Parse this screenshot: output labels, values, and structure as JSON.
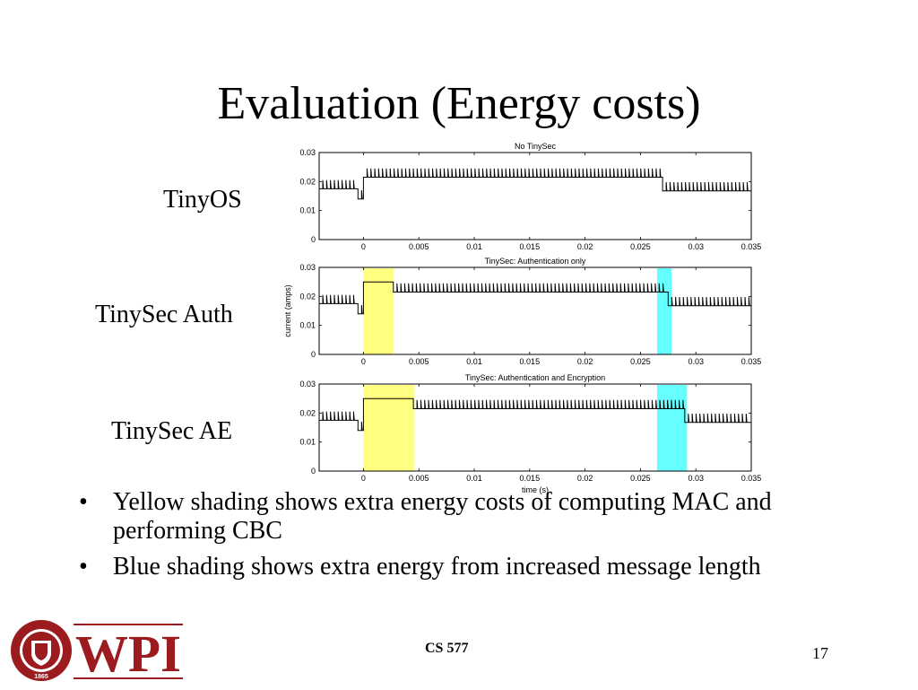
{
  "slide": {
    "title": "Evaluation (Energy costs)",
    "row_labels": [
      "TinyOS",
      "TinySec Auth",
      "TinySec AE"
    ],
    "bullets": [
      "Yellow shading shows extra energy costs of computing MAC and performing CBC",
      "Blue shading shows extra energy from increased message length"
    ],
    "bullet_symbol": "•",
    "footer": {
      "course": "CS 577",
      "page": "17"
    },
    "logo": {
      "text": "WPI",
      "seal_text": "WORCESTER POLYTECHNIC INSTITUTE",
      "seal_year": "1865",
      "color": "#9b1b1e"
    }
  },
  "colors": {
    "yellow_shade": "#ffff80",
    "blue_shade": "#66ffff",
    "trace": "#000000"
  },
  "chart_data": [
    {
      "type": "line",
      "title": "No TinySec",
      "xlabel": "",
      "ylabel": "",
      "xlim": [
        -0.004,
        0.035
      ],
      "ylim": [
        0,
        0.03
      ],
      "x_ticks": [
        "0",
        "0.005",
        "0.01",
        "0.015",
        "0.02",
        "0.025",
        "0.03",
        "0.035"
      ],
      "y_ticks": [
        "0",
        "0.01",
        "0.02",
        "0.03"
      ],
      "series": [
        {
          "x": [
            -0.004,
            -0.0005,
            -0.0005,
            0,
            0,
            0.027,
            0.027,
            0.035
          ],
          "y": [
            0.0175,
            0.0175,
            0.014,
            0.014,
            0.0215,
            0.0215,
            0.0168,
            0.0168
          ]
        }
      ],
      "shading": []
    },
    {
      "type": "line",
      "title": "TinySec: Authentication only",
      "xlabel": "",
      "ylabel": "current (amps)",
      "xlim": [
        -0.004,
        0.035
      ],
      "ylim": [
        0,
        0.03
      ],
      "x_ticks": [
        "0",
        "0.005",
        "0.01",
        "0.015",
        "0.02",
        "0.025",
        "0.03",
        "0.035"
      ],
      "y_ticks": [
        "0",
        "0.01",
        "0.02",
        "0.03"
      ],
      "series": [
        {
          "x": [
            -0.004,
            -0.0005,
            -0.0005,
            0,
            0,
            0.0027,
            0.0027,
            0.0275,
            0.0275,
            0.035
          ],
          "y": [
            0.0175,
            0.0175,
            0.014,
            0.014,
            0.025,
            0.025,
            0.0215,
            0.0215,
            0.0168,
            0.0168
          ]
        }
      ],
      "shading": [
        {
          "color": "yellow",
          "x": [
            0,
            0.0027
          ]
        },
        {
          "color": "blue",
          "x": [
            0.0265,
            0.0278
          ]
        }
      ]
    },
    {
      "type": "line",
      "title": "TinySec: Authentication and Encryption",
      "xlabel": "time (s)",
      "ylabel": "",
      "xlim": [
        -0.004,
        0.035
      ],
      "ylim": [
        0,
        0.03
      ],
      "x_ticks": [
        "0",
        "0.005",
        "0.01",
        "0.015",
        "0.02",
        "0.025",
        "0.03",
        "0.035"
      ],
      "y_ticks": [
        "0",
        "0.01",
        "0.02",
        "0.03"
      ],
      "series": [
        {
          "x": [
            -0.004,
            -0.0005,
            -0.0005,
            0,
            0,
            0.0045,
            0.0045,
            0.029,
            0.029,
            0.035
          ],
          "y": [
            0.0175,
            0.0175,
            0.014,
            0.014,
            0.025,
            0.025,
            0.0215,
            0.0215,
            0.0168,
            0.0168
          ]
        }
      ],
      "shading": [
        {
          "color": "yellow",
          "x": [
            0,
            0.0046
          ]
        },
        {
          "color": "blue",
          "x": [
            0.0265,
            0.0292
          ]
        }
      ]
    }
  ]
}
